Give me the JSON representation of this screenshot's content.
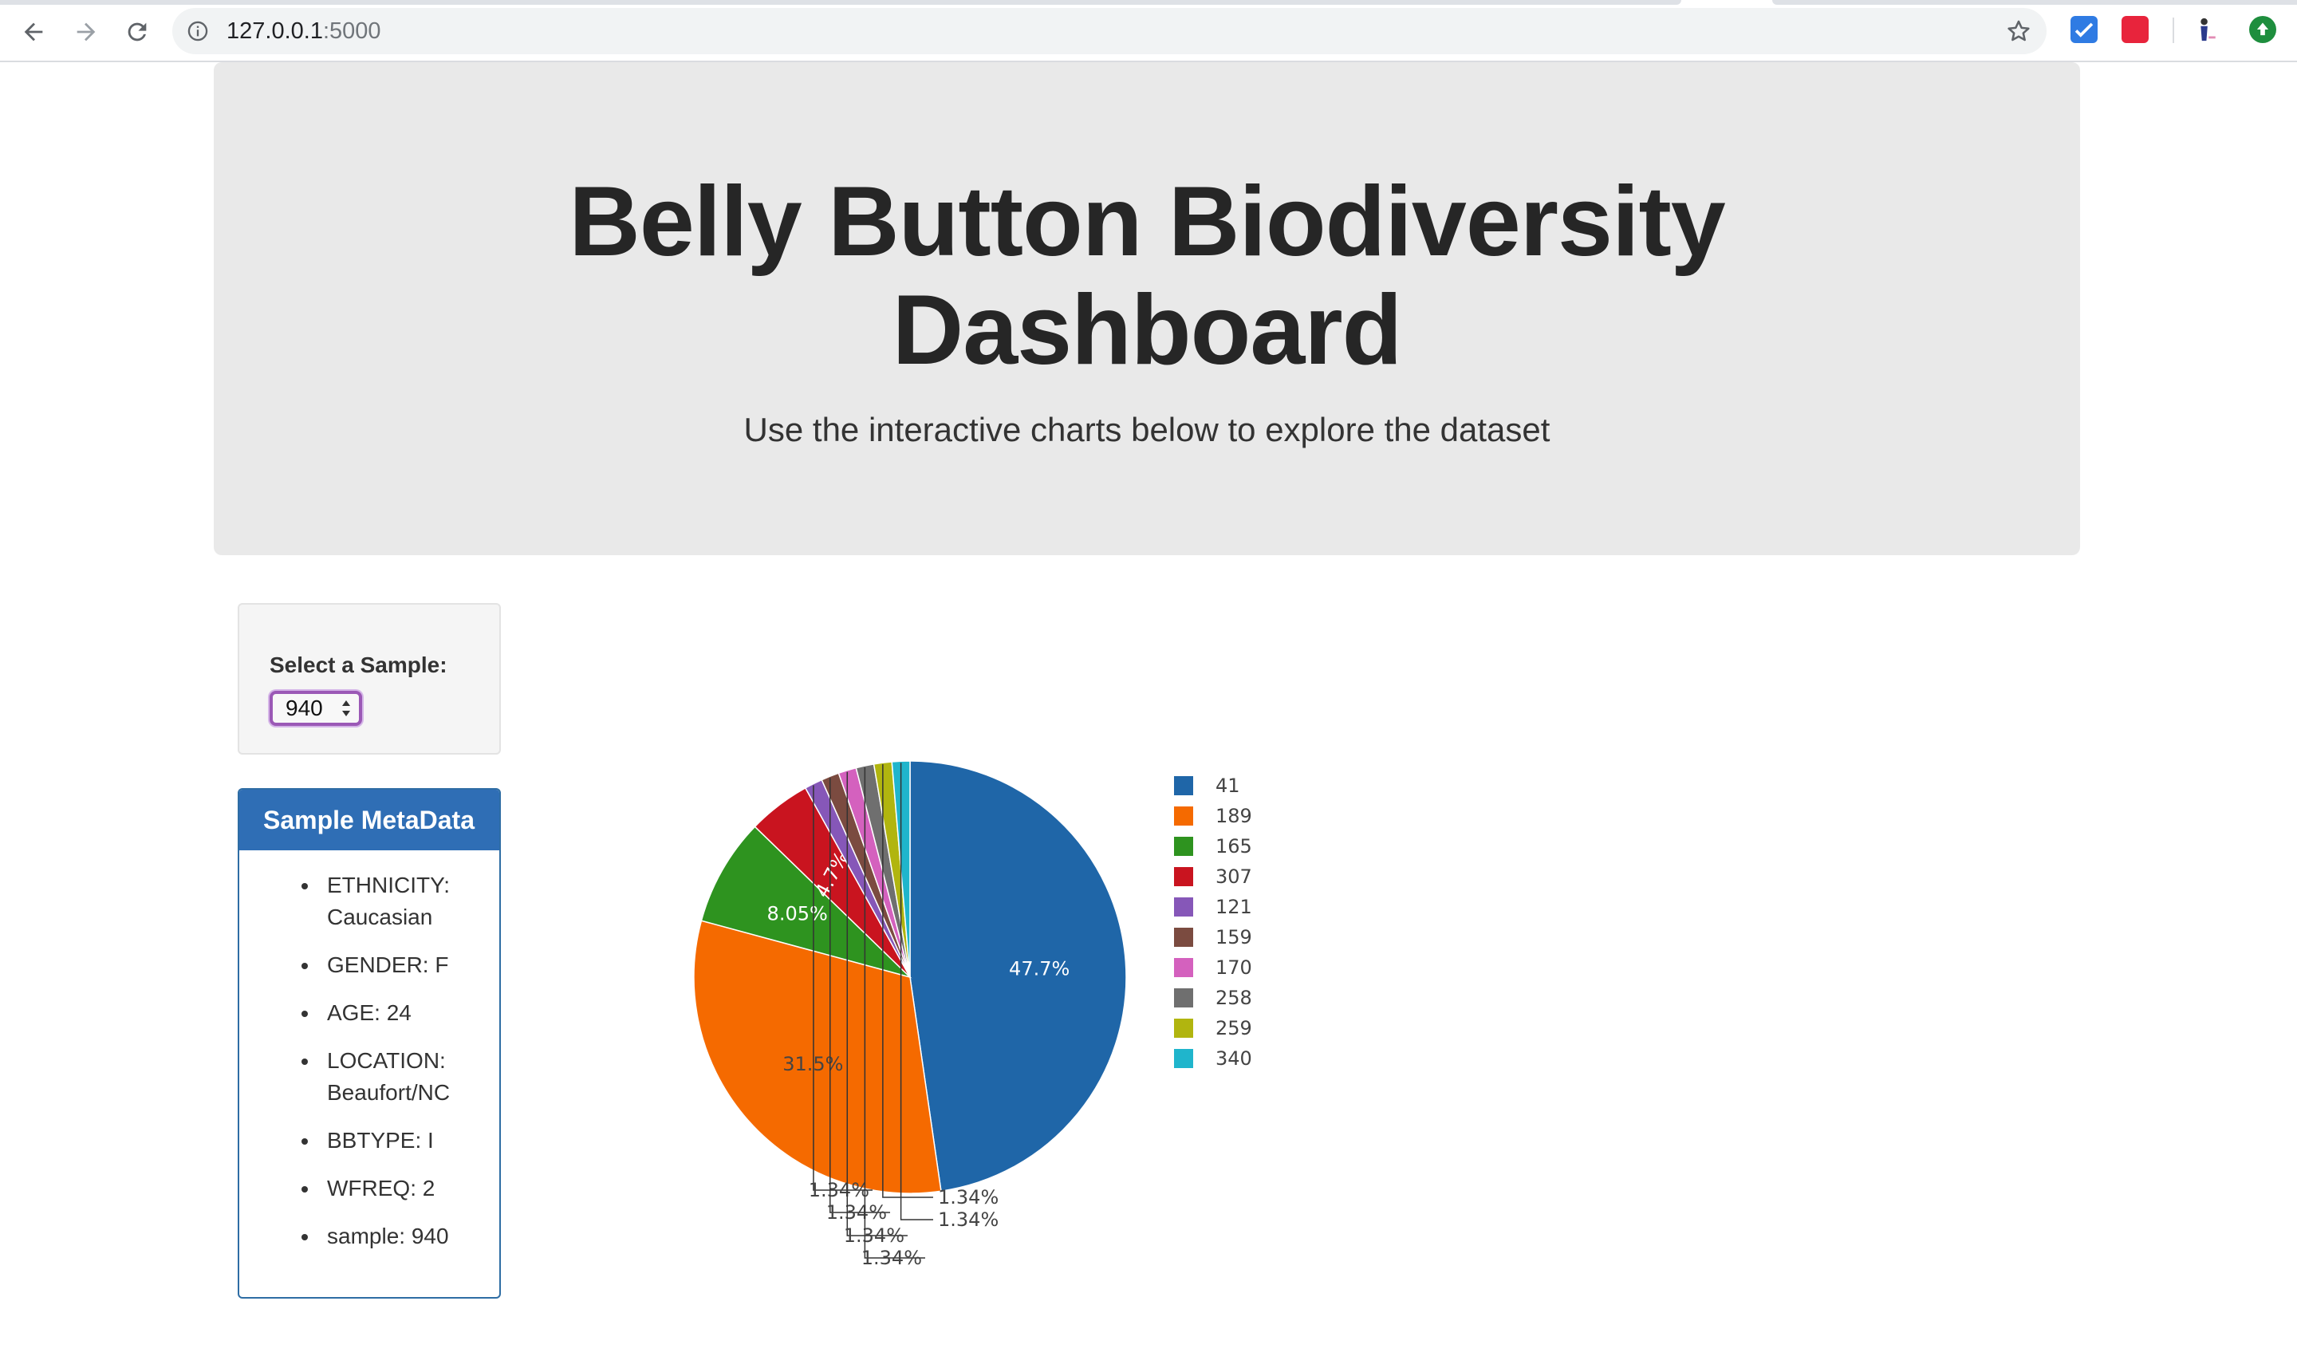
{
  "browser": {
    "url_host": "127.0.0.1",
    "url_port": ":5000"
  },
  "header": {
    "title_line1": "Belly Button Biodiversity",
    "title_line2": "Dashboard",
    "subtitle": "Use the interactive charts below to explore the dataset"
  },
  "selector": {
    "label": "Select a Sample:",
    "selected": "940"
  },
  "metadata": {
    "title": "Sample MetaData",
    "items": [
      "ETHNICITY: Caucasian",
      "GENDER: F",
      "AGE: 24",
      "LOCATION: Beaufort/NC",
      "BBTYPE: I",
      "WFREQ: 2",
      "sample: 940"
    ]
  },
  "chart_data": {
    "type": "pie",
    "labels": [
      "41",
      "189",
      "165",
      "307",
      "121",
      "159",
      "170",
      "258",
      "259",
      "340"
    ],
    "values": [
      47.7,
      31.5,
      8.05,
      4.7,
      1.34,
      1.34,
      1.34,
      1.34,
      1.34,
      1.34
    ],
    "value_labels": [
      "47.7%",
      "31.5%",
      "8.05%",
      "4.7%",
      "1.34%",
      "1.34%",
      "1.34%",
      "1.34%",
      "1.34%",
      "1.34%"
    ],
    "colors": [
      "#1f66a8",
      "#f56a00",
      "#2e931f",
      "#c9141f",
      "#8657b8",
      "#7b4b40",
      "#d461be",
      "#6f6f6f",
      "#b1b50f",
      "#1fb5cc"
    ],
    "legend_position": "right"
  }
}
